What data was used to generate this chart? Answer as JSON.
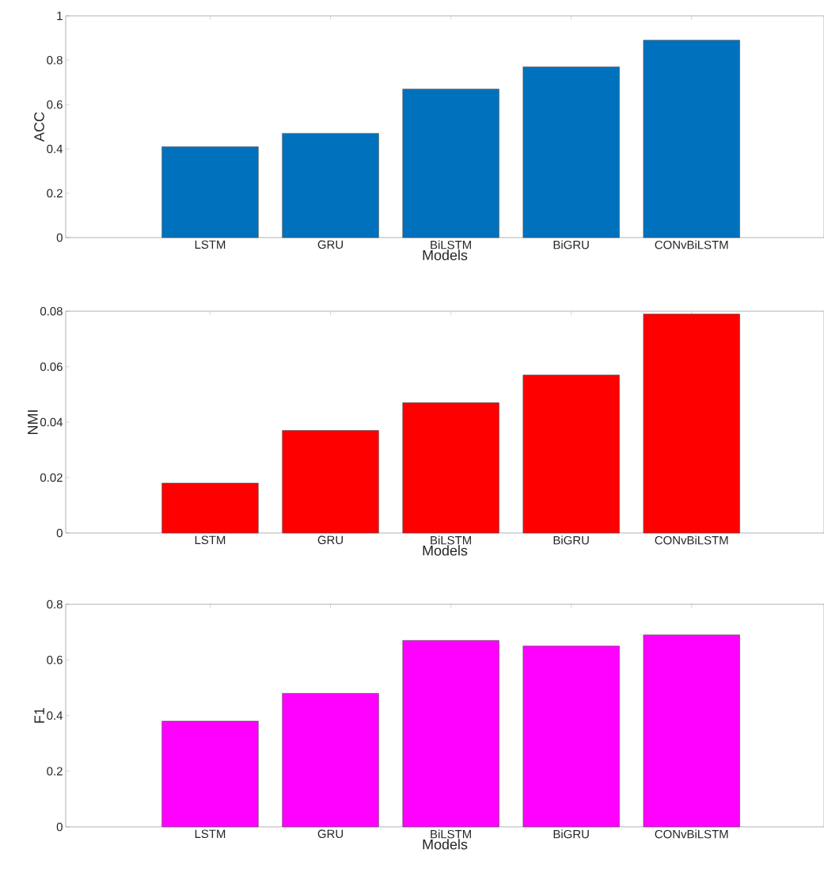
{
  "chart_data": [
    {
      "type": "bar",
      "categories": [
        "LSTM",
        "GRU",
        "BiLSTM",
        "BiGRU",
        "CONvBiLSTM"
      ],
      "xlabel": "Models",
      "ylabel": "ACC",
      "values": [
        0.41,
        0.47,
        0.67,
        0.77,
        0.89
      ],
      "color": "#0072bd",
      "ylim": [
        0,
        1
      ],
      "yticks": [
        0,
        0.2,
        0.4,
        0.6,
        0.8,
        1
      ]
    },
    {
      "type": "bar",
      "categories": [
        "LSTM",
        "GRU",
        "BiLSTM",
        "BiGRU",
        "CONvBiLSTM"
      ],
      "xlabel": "Models",
      "ylabel": "NMI",
      "values": [
        0.018,
        0.037,
        0.047,
        0.057,
        0.079
      ],
      "color": "#ff0000",
      "ylim": [
        0,
        0.08
      ],
      "yticks": [
        0,
        0.02,
        0.04,
        0.06,
        0.08
      ]
    },
    {
      "type": "bar",
      "categories": [
        "LSTM",
        "GRU",
        "BiLSTM",
        "BiGRU",
        "CONvBiLSTM"
      ],
      "xlabel": "Models",
      "ylabel": "F1",
      "values": [
        0.38,
        0.48,
        0.67,
        0.65,
        0.69
      ],
      "color": "#ff00ff",
      "ylim": [
        0,
        0.8
      ],
      "yticks": [
        0,
        0.2,
        0.4,
        0.6,
        0.8
      ]
    }
  ]
}
